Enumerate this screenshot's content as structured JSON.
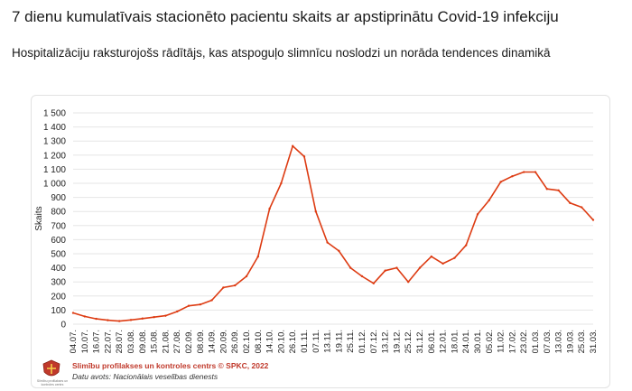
{
  "header": {
    "title": "7 dienu kumulatīvais stacionēto pacientu skaits ar apstiprinātu Covid-19 infekciju",
    "subtitle": "Hospitalizāciju raksturojošs rādītājs, kas atspoguļo slimnīcu noslodzi un norāda tendences dinamikā"
  },
  "footer": {
    "credit": "Slimību profilakses un kontroles centrs © SPKC, 2022",
    "source": "Datu avots: Nacionālais veselības dienests",
    "logo_text": "Slimību profilakses un kontroles centrs"
  },
  "colors": {
    "line": "#dd3b12",
    "grid": "#e6e6e6",
    "axis_text": "#222222"
  },
  "chart_data": {
    "type": "line",
    "ylabel": "Skaits",
    "xlabel": "",
    "ylim": [
      0,
      1500
    ],
    "yticks": [
      0,
      100,
      200,
      300,
      400,
      500,
      600,
      700,
      800,
      900,
      1000,
      1100,
      1200,
      1300,
      1400,
      1500
    ],
    "ytick_labels": [
      "0",
      "100",
      "200",
      "300",
      "400",
      "500",
      "600",
      "700",
      "800",
      "900",
      "1 000",
      "1 100",
      "1 200",
      "1 300",
      "1 400",
      "1 500"
    ],
    "grid": "horizontal",
    "categories": [
      "04.07.",
      "10.07.",
      "16.07.",
      "22.07.",
      "28.07.",
      "03.08.",
      "09.08.",
      "15.08.",
      "21.08.",
      "27.08.",
      "02.09.",
      "08.09.",
      "14.09.",
      "20.09.",
      "26.09.",
      "02.10.",
      "08.10.",
      "14.10.",
      "20.10.",
      "26.10.",
      "01.11.",
      "07.11.",
      "13.11.",
      "19.11.",
      "25.11.",
      "01.12.",
      "07.12.",
      "13.12.",
      "19.12.",
      "25.12.",
      "31.12.",
      "06.01.",
      "12.01.",
      "18.01.",
      "24.01.",
      "30.01.",
      "05.02.",
      "11.02.",
      "17.02.",
      "23.02.",
      "01.03.",
      "07.03.",
      "13.03.",
      "19.03.",
      "25.03.",
      "31.03."
    ],
    "series": [
      {
        "values": [
          80,
          55,
          38,
          28,
          22,
          30,
          40,
          50,
          60,
          90,
          130,
          140,
          170,
          260,
          275,
          340,
          480,
          820,
          1000,
          1265,
          1190,
          800,
          580,
          520,
          400,
          340,
          290,
          380,
          400,
          300,
          400,
          480,
          430,
          470,
          560,
          780,
          880,
          1010,
          1050,
          1080,
          1080,
          960,
          950,
          860,
          830,
          740
        ]
      }
    ]
  }
}
